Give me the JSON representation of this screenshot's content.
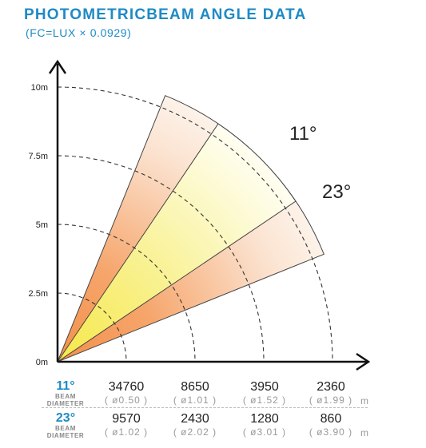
{
  "title": "PHOTOMETRICBEAM ANGLE DATA",
  "subtitle": "(FC=LUX × 0.0929)",
  "diagram": {
    "y_labels": [
      "10m",
      "7.5m",
      "5m",
      "2.5m",
      "0m"
    ],
    "y_values": [
      10,
      7.5,
      5,
      2.5,
      0
    ],
    "outer_angle_label": "23°",
    "inner_angle_label": "11°",
    "colors": {
      "outer_beam_edge": "#f4904a",
      "outer_beam_fade": "#fbe6d6",
      "inner_beam_edge": "#f7ef58",
      "inner_beam_fade": "#fffce8",
      "distance_ring": "#333333",
      "title": "#1e8ac6"
    }
  },
  "table": {
    "unit": "m",
    "rows": [
      {
        "angle": "11°",
        "sub1": "BEAM",
        "sub2": "DIAMETER",
        "lux": [
          "34760",
          "8650",
          "3950",
          "2360"
        ],
        "diameters": [
          "( ø0.50 )",
          "( ø1.01 )",
          "( ø1.52 )",
          "( ø1.99 )"
        ]
      },
      {
        "angle": "23°",
        "sub1": "BEAM",
        "sub2": "DIAMETER",
        "lux": [
          "9570",
          "2430",
          "1280",
          "860"
        ],
        "diameters": [
          "( ø1.02 )",
          "( ø2.02 )",
          "( ø3.01 )",
          "( ø3.90 )"
        ]
      }
    ]
  }
}
